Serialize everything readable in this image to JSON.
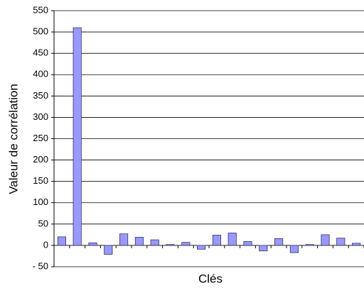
{
  "chart_data": {
    "type": "bar",
    "x_label": "Clés",
    "y_label": "Valeur de corrélation",
    "categories": [
      null,
      null,
      null,
      null,
      null,
      null,
      null,
      null,
      null,
      null,
      null,
      null,
      null,
      null,
      null,
      null,
      null,
      null,
      null,
      null
    ],
    "values": [
      20,
      510,
      6,
      -21,
      27,
      19,
      13,
      2,
      7,
      -9,
      24,
      29,
      9,
      -13,
      16,
      -17,
      2,
      25,
      17,
      5
    ],
    "color": "#9999ff",
    "ylim": [
      -50,
      550
    ],
    "yticks": [
      {
        "value": -50,
        "label": "- 50"
      },
      0,
      50,
      100,
      150,
      200,
      250,
      300,
      350,
      400,
      450,
      500,
      550
    ],
    "grid": true
  }
}
